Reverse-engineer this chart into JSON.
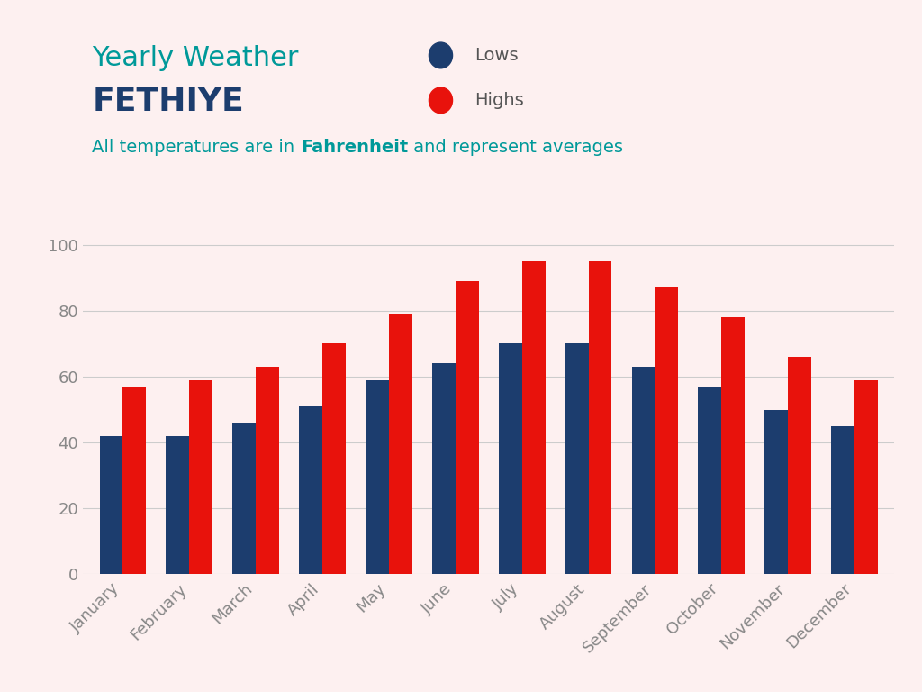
{
  "months": [
    "January",
    "February",
    "March",
    "April",
    "May",
    "June",
    "July",
    "August",
    "September",
    "October",
    "November",
    "December"
  ],
  "lows": [
    42,
    42,
    46,
    51,
    59,
    64,
    70,
    70,
    63,
    57,
    50,
    45
  ],
  "highs": [
    57,
    59,
    63,
    70,
    79,
    89,
    95,
    95,
    87,
    78,
    66,
    59
  ],
  "low_color": "#1c3d6e",
  "high_color": "#e8120c",
  "bg_color": "#fdf0f0",
  "title_text": "Yearly Weather",
  "subtitle_text": "FETHIYE",
  "note_text_plain": "All temperatures are in ",
  "note_bold": "Fahrenheit",
  "note_text_end": " and represent averages",
  "title_color": "#009999",
  "subtitle_color": "#1c3d6e",
  "note_color": "#009999",
  "axis_color": "#888888",
  "grid_color": "#cccccc",
  "legend_lows": "Lows",
  "legend_highs": "Highs",
  "legend_text_color": "#555555",
  "ylim": [
    0,
    105
  ],
  "yticks": [
    0,
    20,
    40,
    60,
    80,
    100
  ],
  "bar_width": 0.35,
  "title_fontsize": 22,
  "subtitle_fontsize": 26,
  "note_fontsize": 14,
  "tick_fontsize": 13,
  "legend_fontsize": 14
}
